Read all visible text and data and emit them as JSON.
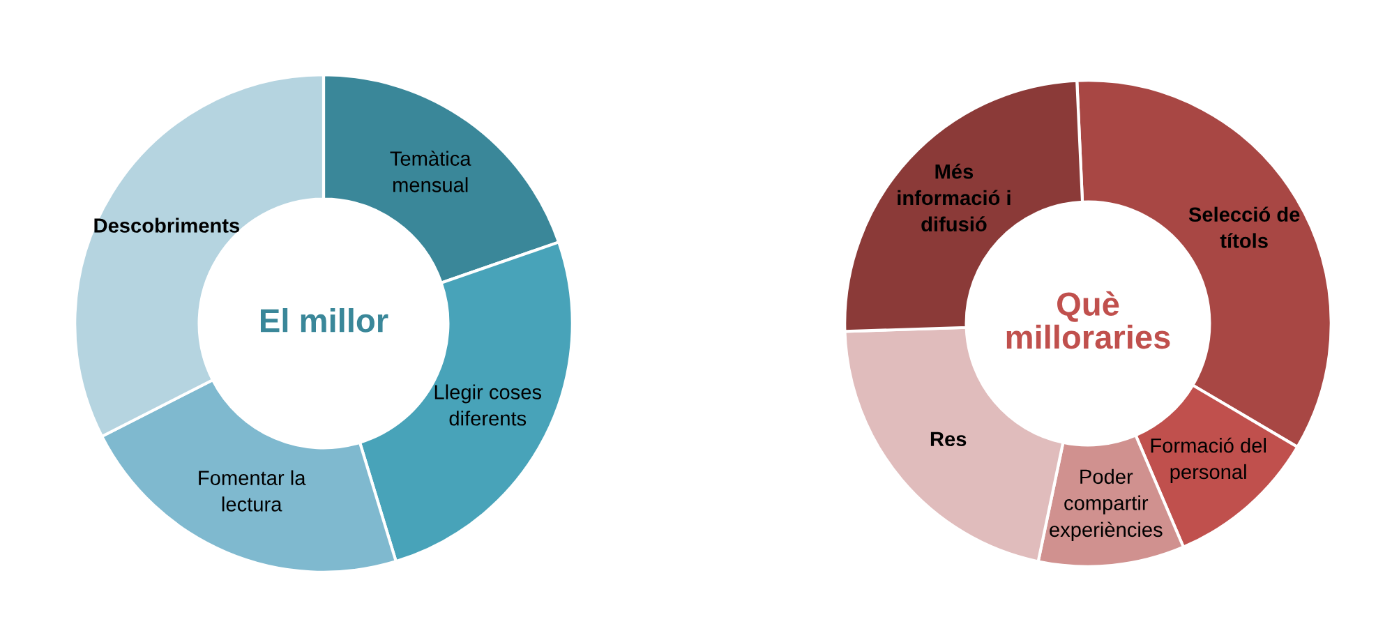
{
  "chart_data": [
    {
      "type": "donut",
      "title": "El millor",
      "categories": [
        "Temàtica\nmensual",
        "Llegir coses\ndiferents",
        "Fomentar la\nlectura",
        "Descobriments"
      ],
      "values": [
        19.7,
        25.6,
        22.2,
        32.5
      ],
      "colors": [
        "#3a8799",
        "#48a3b9",
        "#7fb9cf",
        "#b5d4e0"
      ],
      "legend": false
    },
    {
      "type": "donut",
      "title": "Què\nmilloraries",
      "categories": [
        "Selecció de\ntítols",
        "Formació del\npersonal",
        "Poder\ncompartir\nexperiències",
        "Res",
        "Més\ninformació i\ndifusió"
      ],
      "values": [
        34.2,
        10.1,
        9.7,
        21.2,
        24.8
      ],
      "colors": [
        "#a84744",
        "#c0504d",
        "#d0918f",
        "#e0bcbc",
        "#8b3a38"
      ],
      "legend": false
    }
  ]
}
